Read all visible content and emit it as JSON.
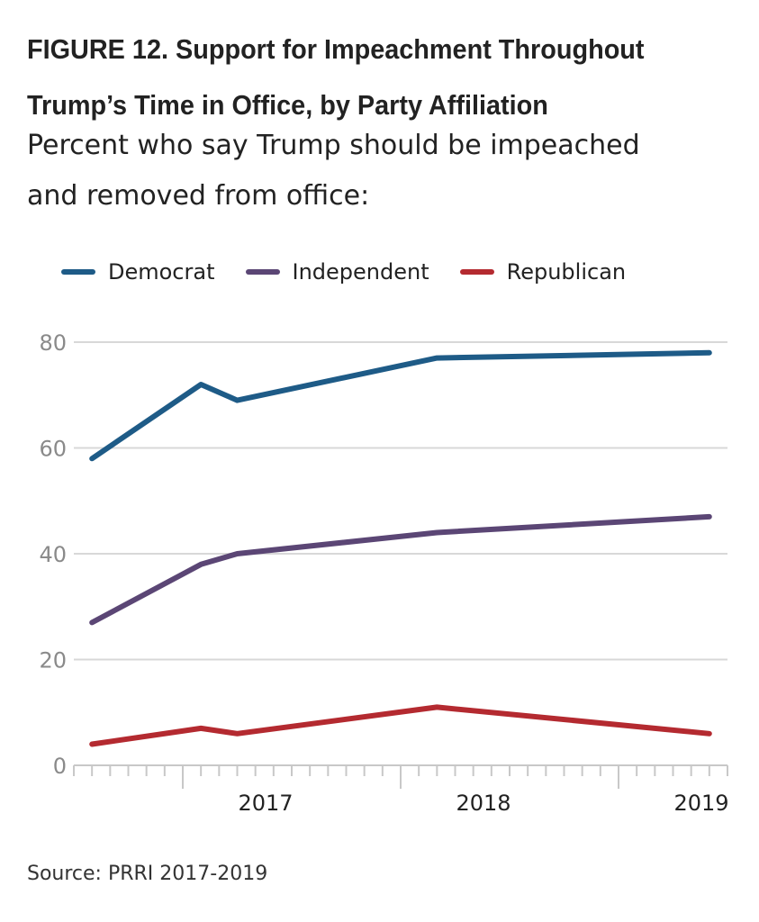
{
  "header": {
    "title_line1": "FIGURE 12. Support for Impeachment Throughout",
    "title_line2": "Trump’s Time in Office, by Party Affiliation",
    "subtitle_line1": "Percent who say Trump should be impeached",
    "subtitle_line2": "and removed from office:"
  },
  "legend": [
    {
      "label": "Democrat",
      "color": "#1e5b87"
    },
    {
      "label": "Independent",
      "color": "#5b4675"
    },
    {
      "label": "Republican",
      "color": "#b42a30"
    }
  ],
  "source": "Source: PRRI 2017-2019",
  "chart_data": {
    "type": "line",
    "title": "FIGURE 12. Support for Impeachment Throughout Trump’s Time in Office, by Party Affiliation",
    "subtitle": "Percent who say Trump should be impeached and removed from office:",
    "xlabel": "",
    "ylabel": "",
    "x_axis": {
      "type": "date",
      "range": [
        "2016-07",
        "2019-07"
      ],
      "tick_labels": [
        "2017",
        "2018",
        "2019"
      ]
    },
    "ylim": [
      0,
      80
    ],
    "yticks": [
      0,
      20,
      40,
      60,
      80
    ],
    "grid": "horizontal",
    "legend_position": "top",
    "x": [
      "2016-08",
      "2017-02",
      "2017-04",
      "2018-03",
      "2019-06"
    ],
    "series": [
      {
        "name": "Democrat",
        "color": "#1e5b87",
        "values": [
          58,
          72,
          69,
          77,
          78
        ]
      },
      {
        "name": "Independent",
        "color": "#5b4675",
        "values": [
          27,
          38,
          40,
          44,
          47
        ]
      },
      {
        "name": "Republican",
        "color": "#b42a30",
        "values": [
          4,
          7,
          6,
          11,
          6
        ]
      }
    ]
  }
}
